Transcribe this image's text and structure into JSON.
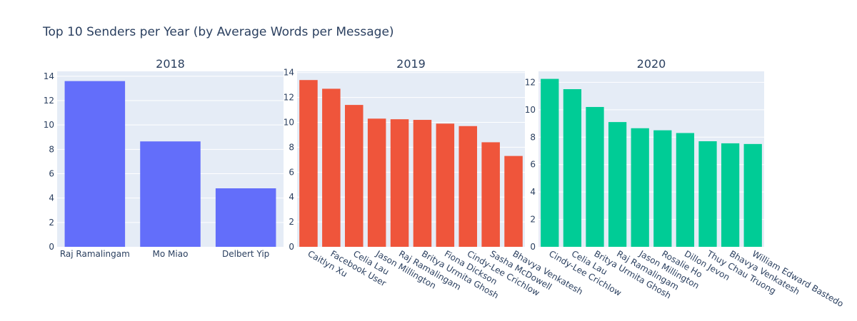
{
  "chart_data": {
    "type": "bar",
    "title": "Top 10 Senders per Year (by Average Words per Message)",
    "panels": [
      {
        "subplot_title": "2018",
        "color": "#636efa",
        "ylim": [
          0,
          14.4
        ],
        "yticks": [
          0,
          2,
          4,
          6,
          8,
          10,
          12,
          14
        ],
        "tick_labels_rotated": false,
        "categories": [
          "Raj Ramalingam",
          "Mo Miao",
          "Delbert Yip"
        ],
        "values": [
          13.6,
          8.65,
          4.8
        ]
      },
      {
        "subplot_title": "2019",
        "color": "#ef553b",
        "ylim": [
          0,
          14.1
        ],
        "yticks": [
          0,
          2,
          4,
          6,
          8,
          10,
          12,
          14
        ],
        "tick_labels_rotated": true,
        "categories": [
          "Caitlyn  Xu",
          "Facebook User",
          "Celia Lau",
          "Jason Millington",
          "Raj Ramalingam",
          "Britya Urmita Ghosh",
          "Fiona Dickson",
          "Cindy-Lee Crichlow",
          "Sasha McDowell",
          "Bhavya Venkatesh"
        ],
        "values": [
          13.4,
          12.7,
          11.4,
          10.3,
          10.25,
          10.2,
          9.9,
          9.7,
          8.4,
          7.3
        ]
      },
      {
        "subplot_title": "2020",
        "color": "#00cc96",
        "ylim": [
          0,
          12.8
        ],
        "yticks": [
          0,
          2,
          4,
          6,
          8,
          10,
          12
        ],
        "tick_labels_rotated": true,
        "categories": [
          "Cindy-Lee Crichlow",
          "Celia Lau",
          "Britya Urmita Ghosh",
          "Raj Ramalingam",
          "Jason Millington",
          "Rosalie Ho",
          "Dillon Jevon",
          "Thuy Chau Truong",
          "Bhavya Venkatesh",
          "William Edward Bastedo"
        ],
        "values": [
          12.25,
          11.5,
          10.2,
          9.1,
          8.65,
          8.5,
          8.3,
          7.7,
          7.55,
          7.5
        ]
      }
    ],
    "grid": true,
    "legend": "none"
  }
}
